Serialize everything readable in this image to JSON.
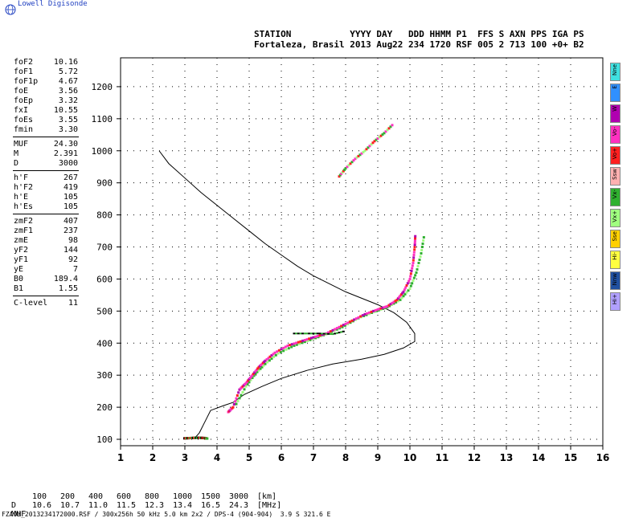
{
  "brand": {
    "logo_text": "Lowell Digisonde"
  },
  "header": {
    "line1": "STATION           YYYY DAY   DDD HHMM P1  FFS S AXN PPS IGA PS",
    "line2": "Fortaleza, Brasil 2013 Aug22 234 1720 RSF 005 2 713 100 +0+ B2"
  },
  "params_group1": [
    {
      "name": "foF2",
      "value": "10.16"
    },
    {
      "name": "foF1",
      "value": "5.72"
    },
    {
      "name": "foF1p",
      "value": "4.67"
    },
    {
      "name": "foE",
      "value": "3.56"
    },
    {
      "name": "foEp",
      "value": "3.32"
    },
    {
      "name": "fxI",
      "value": "10.55"
    },
    {
      "name": "foEs",
      "value": "3.55"
    },
    {
      "name": "fmin",
      "value": "3.30"
    }
  ],
  "params_group2": [
    {
      "name": "MUF",
      "value": "24.30"
    },
    {
      "name": "M",
      "value": "2.391"
    },
    {
      "name": "D",
      "value": "3000"
    }
  ],
  "params_group3": [
    {
      "name": "h'F",
      "value": "267"
    },
    {
      "name": "h'F2",
      "value": "419"
    },
    {
      "name": "h'E",
      "value": "105"
    },
    {
      "name": "h'Es",
      "value": "105"
    }
  ],
  "params_group4": [
    {
      "name": "zmF2",
      "value": "407"
    },
    {
      "name": "zmF1",
      "value": "237"
    },
    {
      "name": "zmE",
      "value": "98"
    },
    {
      "name": "yF2",
      "value": "144"
    },
    {
      "name": "yF1",
      "value": "92"
    },
    {
      "name": "yE",
      "value": "7"
    },
    {
      "name": "B0",
      "value": "189.4"
    },
    {
      "name": "B1",
      "value": "1.55"
    }
  ],
  "params_group5": [
    {
      "name": "C-level",
      "value": "11"
    }
  ],
  "legend": [
    {
      "label": "Nne",
      "color": "#40e0e0"
    },
    {
      "label": "E",
      "color": "#3090ff"
    },
    {
      "label": "W",
      "color": "#b000b0"
    },
    {
      "label": "Vo-",
      "color": "#ff30c0"
    },
    {
      "label": "Vo+",
      "color": "#ff2020"
    },
    {
      "label": "Ssw",
      "color": "#ffb0b0"
    },
    {
      "label": "Vx-",
      "color": "#30b030"
    },
    {
      "label": "Vx+",
      "color": "#a0ff80"
    },
    {
      "label": "Sse",
      "color": "#ffd000"
    },
    {
      "label": "Hi-",
      "color": "#ffff40"
    },
    {
      "label": "Nnw",
      "color": "#2050a0"
    },
    {
      "label": "Hi+",
      "color": "#b0a0ff"
    }
  ],
  "muf_table": {
    "d_label": "D",
    "d_values": [
      "100",
      "200",
      "400",
      "600",
      "800",
      "1000",
      "1500",
      "3000"
    ],
    "d_unit": "[km]",
    "muf_label": "MUF",
    "muf_values": [
      "10.6",
      "10.7",
      "11.0",
      "11.5",
      "12.3",
      "13.4",
      "16.5",
      "24.3"
    ],
    "muf_unit": "[MHz]"
  },
  "footer": "FZA0M_2013234172000.RSF / 300x256h 50 kHz 5.0 km 2x2 / DPS-4 (904-904)  3.9 S 321.6 E",
  "chart_data": {
    "type": "scatter",
    "xlim": [
      1,
      16
    ],
    "ylim": [
      80,
      1290
    ],
    "x_ticks": [
      1,
      2,
      3,
      4,
      5,
      6,
      7,
      8,
      9,
      10,
      11,
      12,
      13,
      14,
      15,
      16
    ],
    "y_ticks": [
      100,
      200,
      300,
      400,
      500,
      600,
      700,
      800,
      900,
      1000,
      1100,
      1200
    ],
    "grid": true,
    "profile_curve": [
      [
        2.2,
        1000
      ],
      [
        2.5,
        960
      ],
      [
        3.0,
        915
      ],
      [
        3.5,
        870
      ],
      [
        4.0,
        830
      ],
      [
        4.5,
        790
      ],
      [
        5.0,
        750
      ],
      [
        5.5,
        710
      ],
      [
        6.0,
        675
      ],
      [
        6.5,
        640
      ],
      [
        7.0,
        610
      ],
      [
        7.5,
        585
      ],
      [
        8.0,
        560
      ],
      [
        8.5,
        540
      ],
      [
        9.0,
        520
      ],
      [
        9.5,
        495
      ],
      [
        9.9,
        465
      ],
      [
        10.15,
        430
      ],
      [
        10.15,
        405
      ],
      [
        9.8,
        385
      ],
      [
        9.2,
        365
      ],
      [
        8.5,
        350
      ],
      [
        7.6,
        335
      ],
      [
        6.8,
        315
      ],
      [
        6.0,
        290
      ],
      [
        5.4,
        265
      ],
      [
        4.85,
        240
      ],
      [
        4.5,
        215
      ],
      [
        4.2,
        205
      ],
      [
        3.8,
        190
      ],
      [
        3.6,
        150
      ],
      [
        3.45,
        120
      ],
      [
        3.3,
        103
      ]
    ],
    "trace_o_mode": [
      [
        4.35,
        185
      ],
      [
        4.5,
        200
      ],
      [
        4.7,
        255
      ],
      [
        4.9,
        275
      ],
      [
        5.1,
        300
      ],
      [
        5.3,
        325
      ],
      [
        5.5,
        345
      ],
      [
        5.8,
        370
      ],
      [
        6.2,
        392
      ],
      [
        6.6,
        405
      ],
      [
        7.0,
        418
      ],
      [
        7.4,
        430
      ],
      [
        7.8,
        450
      ],
      [
        8.2,
        470
      ],
      [
        8.6,
        490
      ],
      [
        9.0,
        505
      ],
      [
        9.3,
        515
      ],
      [
        9.6,
        535
      ],
      [
        9.8,
        560
      ],
      [
        10.0,
        600
      ],
      [
        10.1,
        650
      ],
      [
        10.15,
        700
      ],
      [
        10.17,
        740
      ]
    ],
    "trace_x_mode": [
      [
        4.6,
        210
      ],
      [
        4.9,
        265
      ],
      [
        5.2,
        305
      ],
      [
        5.5,
        335
      ],
      [
        5.9,
        368
      ],
      [
        6.4,
        392
      ],
      [
        6.9,
        410
      ],
      [
        7.4,
        428
      ],
      [
        7.9,
        450
      ],
      [
        8.4,
        478
      ],
      [
        8.9,
        498
      ],
      [
        9.3,
        512
      ],
      [
        9.7,
        535
      ],
      [
        10.0,
        570
      ],
      [
        10.2,
        620
      ],
      [
        10.35,
        680
      ],
      [
        10.45,
        740
      ]
    ],
    "trace_e_layer": [
      [
        3.0,
        103
      ],
      [
        3.2,
        104
      ],
      [
        3.4,
        105
      ],
      [
        3.6,
        104
      ],
      [
        3.7,
        102
      ]
    ],
    "trace_upper": [
      [
        7.8,
        920
      ],
      [
        8.0,
        945
      ],
      [
        8.3,
        975
      ],
      [
        8.6,
        1000
      ],
      [
        8.9,
        1030
      ],
      [
        9.2,
        1055
      ],
      [
        9.5,
        1085
      ]
    ],
    "trace_horizontal": [
      [
        6.4,
        430
      ],
      [
        6.8,
        430
      ],
      [
        7.2,
        430
      ],
      [
        7.6,
        428
      ],
      [
        8.0,
        438
      ]
    ]
  }
}
